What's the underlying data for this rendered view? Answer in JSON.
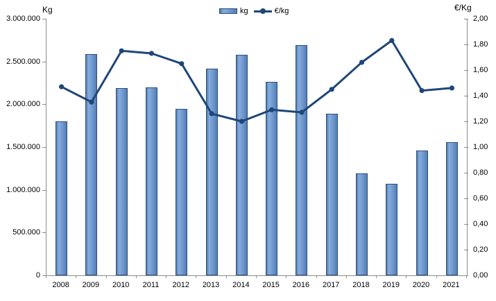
{
  "chart_data": {
    "type": "combo-bar-line",
    "title": "",
    "categories": [
      "2008",
      "2009",
      "2010",
      "2011",
      "2012",
      "2013",
      "2014",
      "2015",
      "2016",
      "2017",
      "2018",
      "2019",
      "2020",
      "2021"
    ],
    "series": [
      {
        "name": "kg",
        "type": "bar",
        "axis": "left",
        "values": [
          1800000,
          2590000,
          2190000,
          2200000,
          1950000,
          2420000,
          2580000,
          2260000,
          2690000,
          1890000,
          1190000,
          1070000,
          1460000,
          1560000
        ],
        "fill_gradient": [
          "#5179ab",
          "#86abdd",
          "#6792cb",
          "#547db2"
        ],
        "border_color": "#2f5078"
      },
      {
        "name": "€/kg",
        "type": "line",
        "axis": "right",
        "values": [
          1.47,
          1.35,
          1.75,
          1.73,
          1.65,
          1.26,
          1.2,
          1.29,
          1.27,
          1.45,
          1.66,
          1.83,
          1.44,
          1.46
        ],
        "color": "#1f4679"
      }
    ],
    "left_axis": {
      "title": "Kg",
      "min": 0,
      "max": 3000000,
      "step": 500000,
      "tick_values": [
        3000000,
        2500000,
        2000000,
        1500000,
        1000000,
        500000,
        0
      ],
      "tick_labels": [
        "3.000.000",
        "2.500.000",
        "2.000.000",
        "1.500.000",
        "1.000.000",
        "500.000",
        "0"
      ]
    },
    "right_axis": {
      "title": "€/Kg",
      "min": 0,
      "max": 2,
      "step": 0.2,
      "tick_values": [
        2.0,
        1.8,
        1.6,
        1.4,
        1.2,
        1.0,
        0.8,
        0.6,
        0.4,
        0.2,
        0.0
      ],
      "tick_labels": [
        "2,00",
        "1,80",
        "1,60",
        "1,40",
        "1,20",
        "1,00",
        "0,80",
        "0,60",
        "0,40",
        "0,20",
        "0,00"
      ]
    },
    "legend": {
      "position": "top-center",
      "entries": [
        "kg",
        "€/kg"
      ]
    },
    "grid": false,
    "background": "#ffffff"
  },
  "legend": {
    "kg_label": "kg",
    "eur_label": "€/kg"
  },
  "axes": {
    "left_title": "Kg",
    "right_title": "€/Kg"
  }
}
